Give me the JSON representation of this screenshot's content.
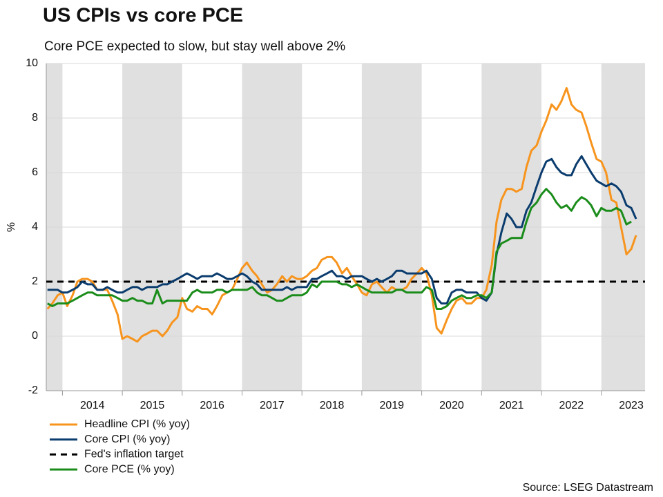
{
  "chart_data": {
    "type": "line",
    "title": "US CPIs vs core PCE",
    "subtitle": "Core PCE expected to slow, but stay well above 2%",
    "y_label": "%",
    "source": "Source: LSEG Datastream",
    "xlim": [
      2013.73,
      2023.73
    ],
    "xticks": [
      {
        "value": 2014.5,
        "label": "2014"
      },
      {
        "value": 2015.5,
        "label": "2015"
      },
      {
        "value": 2016.5,
        "label": "2016"
      },
      {
        "value": 2017.5,
        "label": "2017"
      },
      {
        "value": 2018.5,
        "label": "2018"
      },
      {
        "value": 2019.5,
        "label": "2019"
      },
      {
        "value": 2020.5,
        "label": "2020"
      },
      {
        "value": 2021.5,
        "label": "2021"
      },
      {
        "value": 2022.5,
        "label": "2022"
      },
      {
        "value": 2023.5,
        "label": "2023"
      }
    ],
    "ylim": [
      -2,
      10
    ],
    "yticks": [
      -2,
      0,
      2,
      4,
      6,
      8,
      10
    ],
    "grid": true,
    "x": [
      2013.75,
      2013.83,
      2013.92,
      2014.0,
      2014.08,
      2014.17,
      2014.25,
      2014.33,
      2014.42,
      2014.5,
      2014.58,
      2014.67,
      2014.75,
      2014.83,
      2014.92,
      2015.0,
      2015.08,
      2015.17,
      2015.25,
      2015.33,
      2015.42,
      2015.5,
      2015.58,
      2015.67,
      2015.75,
      2015.83,
      2015.92,
      2016.0,
      2016.08,
      2016.17,
      2016.25,
      2016.33,
      2016.42,
      2016.5,
      2016.58,
      2016.67,
      2016.75,
      2016.83,
      2016.92,
      2017.0,
      2017.08,
      2017.17,
      2017.25,
      2017.33,
      2017.42,
      2017.5,
      2017.58,
      2017.67,
      2017.75,
      2017.83,
      2017.92,
      2018.0,
      2018.08,
      2018.17,
      2018.25,
      2018.33,
      2018.42,
      2018.5,
      2018.58,
      2018.67,
      2018.75,
      2018.83,
      2018.92,
      2019.0,
      2019.08,
      2019.17,
      2019.25,
      2019.33,
      2019.42,
      2019.5,
      2019.58,
      2019.67,
      2019.75,
      2019.83,
      2019.92,
      2020.0,
      2020.08,
      2020.17,
      2020.25,
      2020.33,
      2020.42,
      2020.5,
      2020.58,
      2020.67,
      2020.75,
      2020.83,
      2020.92,
      2021.0,
      2021.08,
      2021.17,
      2021.25,
      2021.33,
      2021.42,
      2021.5,
      2021.58,
      2021.67,
      2021.75,
      2021.83,
      2021.92,
      2022.0,
      2022.08,
      2022.17,
      2022.25,
      2022.33,
      2022.42,
      2022.5,
      2022.58,
      2022.67,
      2022.75,
      2022.83,
      2022.92,
      2023.0,
      2023.08,
      2023.17,
      2023.25,
      2023.33,
      2023.42,
      2023.5,
      2023.58
    ],
    "series": [
      {
        "name": "Headline CPI (% yoy)",
        "color": "#f7941d",
        "values": [
          1.0,
          1.2,
          1.5,
          1.6,
          1.1,
          1.5,
          2.0,
          2.1,
          2.1,
          2.0,
          1.7,
          1.7,
          1.7,
          1.3,
          0.8,
          -0.1,
          0.0,
          -0.1,
          -0.2,
          0.0,
          0.1,
          0.2,
          0.2,
          0.0,
          0.2,
          0.5,
          0.7,
          1.4,
          1.0,
          0.9,
          1.1,
          1.0,
          1.0,
          0.8,
          1.1,
          1.5,
          1.6,
          1.7,
          2.1,
          2.5,
          2.7,
          2.4,
          2.2,
          1.9,
          1.6,
          1.7,
          1.9,
          2.2,
          2.0,
          2.2,
          2.1,
          2.1,
          2.2,
          2.4,
          2.5,
          2.8,
          2.9,
          2.9,
          2.7,
          2.3,
          2.5,
          2.2,
          1.9,
          1.6,
          1.5,
          1.9,
          2.0,
          1.8,
          1.6,
          1.8,
          1.7,
          1.7,
          1.8,
          2.1,
          2.3,
          2.5,
          2.3,
          1.5,
          0.3,
          0.1,
          0.6,
          1.0,
          1.3,
          1.4,
          1.2,
          1.2,
          1.4,
          1.4,
          1.7,
          2.6,
          4.2,
          5.0,
          5.4,
          5.4,
          5.3,
          5.4,
          6.2,
          6.8,
          7.0,
          7.5,
          7.9,
          8.5,
          8.3,
          8.6,
          9.1,
          8.5,
          8.3,
          8.2,
          7.7,
          7.1,
          6.5,
          6.4,
          6.0,
          5.0,
          4.9,
          4.0,
          3.0,
          3.2,
          3.7
        ]
      },
      {
        "name": "Core CPI (% yoy)",
        "color": "#0b3c6e",
        "values": [
          1.7,
          1.7,
          1.7,
          1.6,
          1.6,
          1.7,
          1.8,
          2.0,
          1.9,
          1.9,
          1.7,
          1.7,
          1.8,
          1.7,
          1.6,
          1.6,
          1.7,
          1.8,
          1.8,
          1.7,
          1.8,
          1.8,
          1.8,
          1.9,
          1.9,
          2.0,
          2.1,
          2.2,
          2.3,
          2.2,
          2.1,
          2.2,
          2.2,
          2.2,
          2.3,
          2.2,
          2.1,
          2.1,
          2.2,
          2.3,
          2.2,
          2.0,
          1.9,
          1.7,
          1.7,
          1.7,
          1.7,
          1.7,
          1.8,
          1.7,
          1.8,
          1.8,
          1.8,
          2.1,
          2.1,
          2.2,
          2.3,
          2.4,
          2.2,
          2.2,
          2.1,
          2.2,
          2.2,
          2.2,
          2.1,
          2.0,
          2.1,
          2.0,
          2.1,
          2.2,
          2.4,
          2.4,
          2.3,
          2.3,
          2.3,
          2.3,
          2.4,
          2.1,
          1.4,
          1.2,
          1.2,
          1.6,
          1.7,
          1.7,
          1.6,
          1.6,
          1.6,
          1.4,
          1.3,
          1.6,
          3.0,
          3.8,
          4.5,
          4.3,
          4.0,
          4.0,
          4.6,
          4.9,
          5.5,
          6.0,
          6.4,
          6.5,
          6.2,
          6.0,
          5.9,
          5.9,
          6.3,
          6.6,
          6.3,
          6.0,
          5.7,
          5.6,
          5.5,
          5.6,
          5.5,
          5.3,
          4.8,
          4.7,
          4.3
        ]
      },
      {
        "name": "Core PCE (% yoy)",
        "color": "#1a8c1a",
        "values": [
          1.2,
          1.1,
          1.2,
          1.2,
          1.2,
          1.3,
          1.4,
          1.5,
          1.6,
          1.6,
          1.5,
          1.5,
          1.5,
          1.5,
          1.4,
          1.3,
          1.3,
          1.4,
          1.3,
          1.3,
          1.2,
          1.2,
          1.7,
          1.2,
          1.3,
          1.3,
          1.3,
          1.3,
          1.3,
          1.6,
          1.7,
          1.6,
          1.6,
          1.6,
          1.7,
          1.7,
          1.6,
          1.7,
          1.7,
          1.7,
          1.7,
          1.8,
          1.6,
          1.5,
          1.5,
          1.4,
          1.3,
          1.3,
          1.4,
          1.5,
          1.5,
          1.5,
          1.6,
          1.9,
          1.8,
          2.0,
          2.0,
          2.0,
          2.0,
          1.9,
          1.9,
          1.8,
          1.9,
          1.8,
          1.7,
          1.6,
          1.6,
          1.6,
          1.6,
          1.6,
          1.7,
          1.7,
          1.6,
          1.6,
          1.6,
          1.6,
          1.8,
          1.7,
          1.0,
          1.0,
          1.1,
          1.3,
          1.4,
          1.5,
          1.4,
          1.4,
          1.5,
          1.5,
          1.4,
          1.6,
          3.1,
          3.4,
          3.5,
          3.6,
          3.6,
          3.6,
          4.2,
          4.7,
          4.9,
          5.2,
          5.4,
          5.2,
          4.9,
          4.7,
          4.8,
          4.6,
          4.9,
          5.1,
          5.0,
          4.8,
          4.4,
          4.7,
          4.6,
          4.6,
          4.7,
          4.6,
          4.1,
          4.2,
          null
        ]
      }
    ],
    "reference_line": {
      "name": "Fed's inflation target",
      "value": 2,
      "color": "#000000",
      "dashed": true
    }
  }
}
